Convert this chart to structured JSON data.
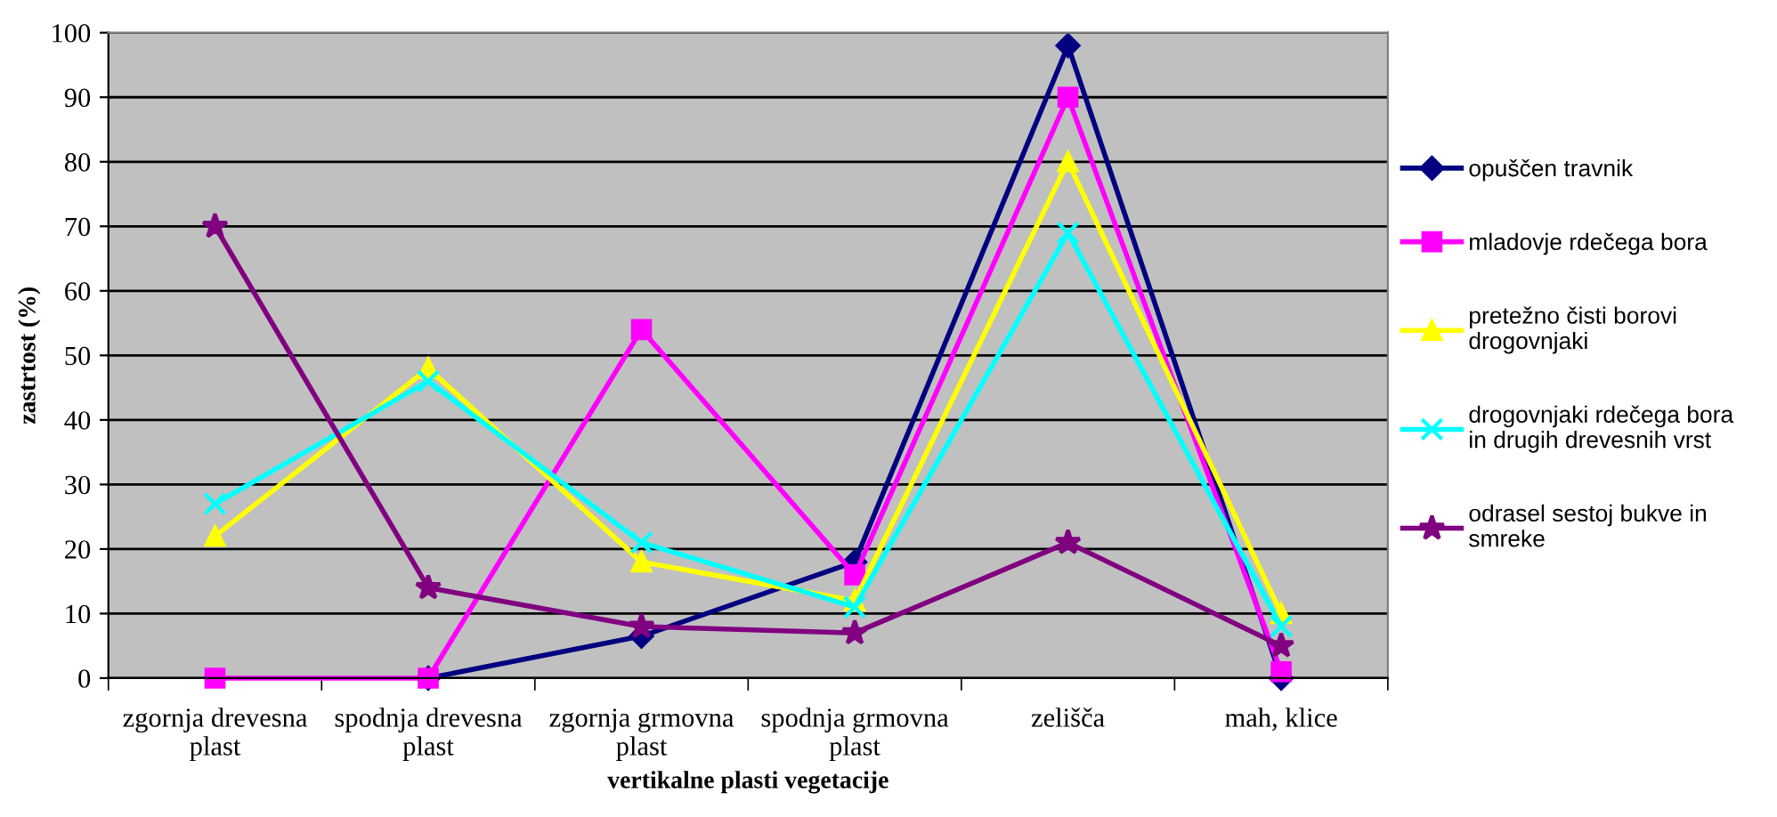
{
  "chart_data": {
    "type": "line",
    "xlabel": "vertikalne plasti vegetacije",
    "ylabel": "zastrtost (%)",
    "categories": [
      "zgornja drevesna\nplast",
      "spodnja drevesna\nplast",
      "zgornja grmovna\nplast",
      "spodnja grmovna\nplast",
      "zelišča",
      "mah, klice"
    ],
    "series": [
      {
        "name": "opuščen travnik",
        "color": "#000080",
        "marker": "diamond",
        "values": [
          null,
          0,
          6.5,
          18,
          98,
          0
        ]
      },
      {
        "name": "mladovje rdečega bora",
        "color": "#ff00ff",
        "marker": "square",
        "values": [
          0,
          0,
          54,
          16,
          90,
          1
        ]
      },
      {
        "name": "pretežno čisti borovi\ndrogovnjaki",
        "color": "#ffff00",
        "marker": "triangle",
        "values": [
          22,
          48,
          18,
          12,
          80,
          10
        ]
      },
      {
        "name": "drogovnjaki rdečega bora\nin drugih drevesnih vrst",
        "color": "#00ffff",
        "marker": "cross",
        "values": [
          27,
          46,
          21,
          11,
          69,
          8
        ]
      },
      {
        "name": "odrasel sestoj bukve in\nsmreke",
        "color": "#800080",
        "marker": "star",
        "values": [
          70,
          14,
          8,
          7,
          21,
          5
        ]
      }
    ],
    "ylim": [
      0,
      100
    ],
    "yticks": [
      0,
      10,
      20,
      30,
      40,
      50,
      60,
      70,
      80,
      90,
      100
    ],
    "grid": "y",
    "legend": "right"
  }
}
